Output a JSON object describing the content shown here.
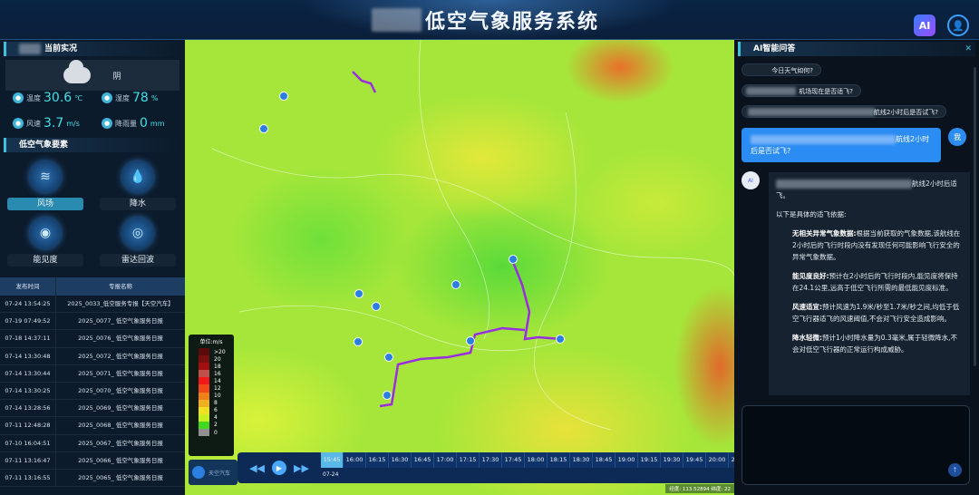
{
  "header": {
    "title": "低空气象服务系统",
    "ai_label": "AI"
  },
  "current": {
    "section_title": "当前实况",
    "weather": "阴",
    "stats": [
      {
        "icon": "thermometer-icon",
        "label": "温度",
        "value": "30.6",
        "unit": "℃"
      },
      {
        "icon": "humidity-icon",
        "label": "湿度",
        "value": "78",
        "unit": "%"
      },
      {
        "icon": "wind-icon",
        "label": "风速",
        "value": "3.7",
        "unit": "m/s"
      },
      {
        "icon": "rain-icon",
        "label": "降雨量",
        "value": "0",
        "unit": "mm"
      }
    ]
  },
  "elements": {
    "section_title": "低空气象要素",
    "items": [
      {
        "label": "风场",
        "icon": "wind-icon",
        "glyph": "≋",
        "active": true
      },
      {
        "label": "降水",
        "icon": "water-drop-icon",
        "glyph": "💧",
        "active": false
      },
      {
        "label": "能见度",
        "icon": "eye-icon",
        "glyph": "◉",
        "active": false
      },
      {
        "label": "雷达回波",
        "icon": "radar-icon",
        "glyph": "◎",
        "active": false
      }
    ]
  },
  "reports": {
    "columns": [
      "发布时间",
      "专报名称"
    ],
    "rows": [
      [
        "07-24 13:54:25",
        "2025_0033_低空服务专报【天空汽车】"
      ],
      [
        "07-19 07:49:52",
        "2025_0077_ 低空气象服务日报"
      ],
      [
        "07-18 14:37:11",
        "2025_0076_ 低空气象服务日报"
      ],
      [
        "07-14 13:30:48",
        "2025_0072_ 低空气象服务日报"
      ],
      [
        "07-14 13:30:44",
        "2025_0071_ 低空气象服务日报"
      ],
      [
        "07-14 13:30:25",
        "2025_0070_ 低空气象服务日报"
      ],
      [
        "07-14 13:28:56",
        "2025_0069_ 低空气象服务日报"
      ],
      [
        "07-11 12:48:28",
        "2025_0068_ 低空气象服务日报"
      ],
      [
        "07-10 16:04:51",
        "2025_0067_ 低空气象服务日报"
      ],
      [
        "07-11 13:16:47",
        "2025_0066_ 低空气象服务日报"
      ],
      [
        "07-11 13:16:55",
        "2025_0065_ 低空气象服务日报"
      ]
    ]
  },
  "map": {
    "legend": {
      "title": "单位:m/s",
      "items": [
        {
          "label": ">20",
          "color": "#5a0a0a"
        },
        {
          "label": "20",
          "color": "#7a0f0f"
        },
        {
          "label": "18",
          "color": "#a01010"
        },
        {
          "label": "16",
          "color": "#c0504a"
        },
        {
          "label": "14",
          "color": "#f01818"
        },
        {
          "label": "12",
          "color": "#f04818"
        },
        {
          "label": "10",
          "color": "#f08018"
        },
        {
          "label": "8",
          "color": "#f0b020"
        },
        {
          "label": "6",
          "color": "#f0e020"
        },
        {
          "label": "4",
          "color": "#c8f020"
        },
        {
          "label": "2",
          "color": "#40d820"
        },
        {
          "label": "0",
          "color": "#909090"
        }
      ]
    },
    "timeline": {
      "times": [
        "15:45",
        "16:00",
        "16:15",
        "16:30",
        "16:45",
        "17:00",
        "17:15",
        "17:30",
        "17:45",
        "18:00",
        "18:15",
        "18:30",
        "18:45",
        "19:00",
        "19:15",
        "19:30",
        "19:45",
        "20:00",
        "20:15",
        "20:30"
      ],
      "selected": "15:45",
      "date": "07-24"
    },
    "layer_button": "天空汽车",
    "coordinates": "经度: 113.52894  纬度: 22"
  },
  "chat": {
    "title": "AI智能问答",
    "close": "✕",
    "suggestions": [
      "今日天气如何?",
      "机场现在是否适飞?",
      "航线2小时后是否试飞?"
    ],
    "user_message": "航线2小时后是否试飞?",
    "user_avatar": "我",
    "ai_avatar": "AI",
    "answer": {
      "intro": "航线2小时后适飞。",
      "lead": "以下是具体的适飞依据:",
      "points": [
        {
          "title": "无相关异常气象数据:",
          "text": "根据当前获取的气象数据,该航线在2小时后的飞行时段内没有发现任何可能影响飞行安全的异常气象数据。"
        },
        {
          "title": "能见度良好:",
          "text": "预计在2小时后的飞行时段内,能见度将保持在24.1公里,远高于低空飞行所需的最低能见度标准。"
        },
        {
          "title": "风速适宜:",
          "text": "预计风速为1.9米/秒至1.7米/秒之间,均低于低空飞行器适飞的风速阈值,不会对飞行安全造成影响。"
        },
        {
          "title": "降水轻微:",
          "text": "预计1小时降水量为0.3毫米,属于轻微降水,不会对低空飞行器的正常运行构成威胁。"
        }
      ]
    },
    "send": "↑"
  }
}
